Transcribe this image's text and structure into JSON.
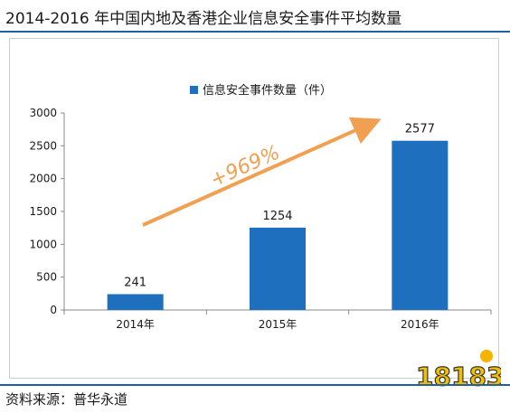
{
  "header": {
    "title": "2014-2016 年中国内地及香港企业信息安全事件平均数量"
  },
  "footer": {
    "source": "资料来源：普华永道"
  },
  "logo": {
    "text": "18183"
  },
  "colors": {
    "bar": "#1f6fbf",
    "arrow": "#f0a050",
    "rule": "#1f5fa6"
  },
  "chart_data": {
    "type": "bar",
    "categories": [
      "2014年",
      "2015年",
      "2016年"
    ],
    "series": [
      {
        "name": "信息安全事件数量（件）",
        "values": [
          241,
          1254,
          2577
        ]
      }
    ],
    "data_labels": [
      "241",
      "1254",
      "2577"
    ],
    "y_ticks": [
      "0",
      "500",
      "1000",
      "1500",
      "2000",
      "2500",
      "3000"
    ],
    "ylim": [
      0,
      3000
    ],
    "grid": false,
    "legend": "top-center",
    "annotation": "+969%"
  }
}
